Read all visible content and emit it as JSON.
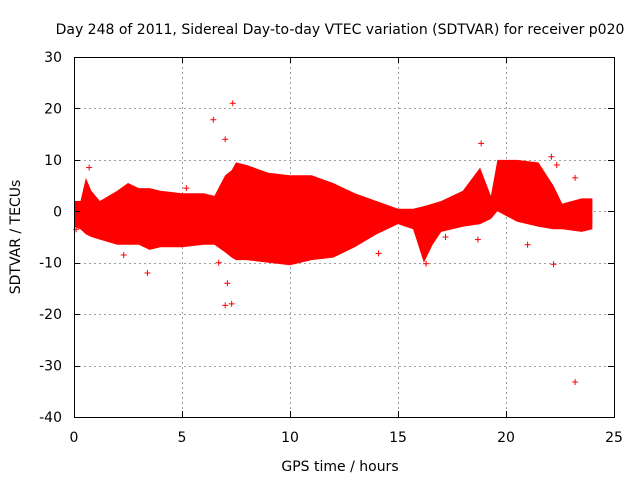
{
  "chart_data": {
    "type": "scatter",
    "title": "Day 248 of 2011, Sidereal Day-to-day VTEC variation (SDTVAR) for receiver p020",
    "xlabel": "GPS time / hours",
    "ylabel": "SDTVAR / TECUs",
    "xlim": [
      0,
      25
    ],
    "ylim": [
      -40,
      30
    ],
    "xticks": [
      "0",
      "5",
      "10",
      "15",
      "20",
      "25"
    ],
    "yticks": [
      "30",
      "20",
      "10",
      "0",
      "-10",
      "-20",
      "-30",
      "-40"
    ],
    "grid": true,
    "series_color": "#ff0000",
    "series": [
      {
        "name": "SDTVAR",
        "marker": "+",
        "envelope": [
          {
            "x": 0.0,
            "upper": 2.0,
            "lower": -3.0
          },
          {
            "x": 0.3,
            "upper": 2.0,
            "lower": -3.5
          },
          {
            "x": 0.55,
            "upper": 6.5,
            "lower": -4.5
          },
          {
            "x": 0.8,
            "upper": 4.0,
            "lower": -5.0
          },
          {
            "x": 1.2,
            "upper": 2.0,
            "lower": -5.5
          },
          {
            "x": 2.0,
            "upper": 4.0,
            "lower": -6.5
          },
          {
            "x": 2.5,
            "upper": 5.5,
            "lower": -6.5
          },
          {
            "x": 3.0,
            "upper": 4.5,
            "lower": -6.5
          },
          {
            "x": 3.5,
            "upper": 4.5,
            "lower": -7.5
          },
          {
            "x": 4.0,
            "upper": 4.0,
            "lower": -7.0
          },
          {
            "x": 5.0,
            "upper": 3.5,
            "lower": -7.0
          },
          {
            "x": 6.0,
            "upper": 3.5,
            "lower": -6.5
          },
          {
            "x": 6.5,
            "upper": 3.0,
            "lower": -6.5
          },
          {
            "x": 7.0,
            "upper": 7.0,
            "lower": -8.0
          },
          {
            "x": 7.3,
            "upper": 8.0,
            "lower": -9.0
          },
          {
            "x": 7.5,
            "upper": 9.5,
            "lower": -9.5
          },
          {
            "x": 8.0,
            "upper": 9.0,
            "lower": -9.5
          },
          {
            "x": 9.0,
            "upper": 7.5,
            "lower": -10.0
          },
          {
            "x": 10.0,
            "upper": 7.0,
            "lower": -10.5
          },
          {
            "x": 11.0,
            "upper": 7.0,
            "lower": -9.5
          },
          {
            "x": 12.0,
            "upper": 5.5,
            "lower": -9.0
          },
          {
            "x": 13.0,
            "upper": 3.5,
            "lower": -7.0
          },
          {
            "x": 14.0,
            "upper": 2.0,
            "lower": -4.5
          },
          {
            "x": 15.0,
            "upper": 0.5,
            "lower": -2.5
          },
          {
            "x": 15.7,
            "upper": 0.5,
            "lower": -3.5
          },
          {
            "x": 16.2,
            "upper": 1.0,
            "lower": -10.0
          },
          {
            "x": 16.6,
            "upper": 1.5,
            "lower": -6.5
          },
          {
            "x": 17.0,
            "upper": 2.0,
            "lower": -4.0
          },
          {
            "x": 18.0,
            "upper": 4.0,
            "lower": -3.0
          },
          {
            "x": 18.8,
            "upper": 8.5,
            "lower": -2.5
          },
          {
            "x": 19.3,
            "upper": 3.0,
            "lower": -1.5
          },
          {
            "x": 19.6,
            "upper": 10.0,
            "lower": 0.0
          },
          {
            "x": 20.5,
            "upper": 10.0,
            "lower": -2.0
          },
          {
            "x": 21.5,
            "upper": 9.5,
            "lower": -3.0
          },
          {
            "x": 22.2,
            "upper": 5.0,
            "lower": -3.5
          },
          {
            "x": 22.6,
            "upper": 1.5,
            "lower": -3.5
          },
          {
            "x": 23.5,
            "upper": 2.5,
            "lower": -4.0
          },
          {
            "x": 24.0,
            "upper": 2.5,
            "lower": -3.5
          }
        ],
        "outliers": [
          {
            "x": 7.35,
            "y": 21.0
          },
          {
            "x": 6.45,
            "y": 17.8
          },
          {
            "x": 7.0,
            "y": 14.0
          },
          {
            "x": 18.85,
            "y": 13.2
          },
          {
            "x": 22.1,
            "y": 10.6
          },
          {
            "x": 22.35,
            "y": 9.0
          },
          {
            "x": 23.2,
            "y": 6.5
          },
          {
            "x": 0.7,
            "y": 8.5
          },
          {
            "x": 5.2,
            "y": 4.5
          },
          {
            "x": 3.4,
            "y": -12.0
          },
          {
            "x": 2.3,
            "y": -8.5
          },
          {
            "x": 6.7,
            "y": -10.0
          },
          {
            "x": 7.1,
            "y": -14.0
          },
          {
            "x": 7.3,
            "y": -18.0
          },
          {
            "x": 7.0,
            "y": -18.3
          },
          {
            "x": 14.1,
            "y": -8.2
          },
          {
            "x": 16.3,
            "y": -10.2
          },
          {
            "x": 18.7,
            "y": -5.5
          },
          {
            "x": 21.0,
            "y": -6.5
          },
          {
            "x": 22.2,
            "y": -10.3
          },
          {
            "x": 23.2,
            "y": -33.2
          },
          {
            "x": 17.2,
            "y": -5.0
          },
          {
            "x": 0.1,
            "y": -3.5
          }
        ]
      }
    ]
  }
}
